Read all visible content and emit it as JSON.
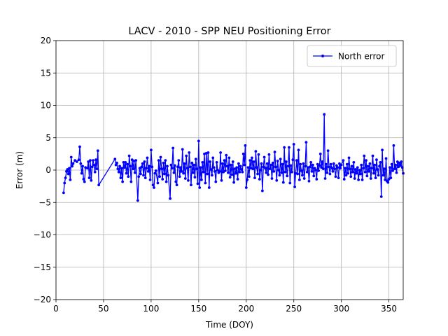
{
  "chart_data": {
    "type": "line",
    "title": "LACV - 2010 - SPP NEU Positioning Error",
    "x_label": "Time (DOY)",
    "y_label": "Error (m)",
    "xlim": [
      0,
      365
    ],
    "ylim": [
      -20,
      20
    ],
    "xticks": [
      0,
      50,
      100,
      150,
      200,
      250,
      300,
      350
    ],
    "yticks": [
      {
        "value": -20,
        "label": "−20"
      },
      {
        "value": -15,
        "label": "−15"
      },
      {
        "value": -10,
        "label": "−10"
      },
      {
        "value": -5,
        "label": "−5"
      },
      0,
      5,
      10,
      15,
      20
    ],
    "grid": true,
    "legend": "upper right",
    "x": [
      8,
      9,
      10,
      11,
      12,
      13,
      14,
      15,
      16,
      17,
      18,
      20,
      22,
      24,
      25,
      26,
      27,
      28,
      29,
      30,
      31,
      33,
      34,
      35,
      36,
      37,
      38,
      39,
      40,
      41,
      42,
      43,
      44,
      45,
      62,
      63,
      64,
      65,
      66,
      67,
      68,
      69,
      70,
      71,
      72,
      73,
      74,
      75,
      76,
      77,
      78,
      79,
      80,
      81,
      82,
      83,
      84,
      86,
      87,
      88,
      89,
      90,
      91,
      92,
      93,
      94,
      95,
      96,
      97,
      98,
      99,
      100,
      101,
      102,
      103,
      104,
      105,
      107,
      108,
      109,
      110,
      111,
      112,
      113,
      114,
      115,
      116,
      117,
      118,
      120,
      121,
      122,
      123,
      124,
      125,
      126,
      127,
      128,
      129,
      130,
      131,
      132,
      133,
      134,
      135,
      136,
      137,
      138,
      139,
      140,
      141,
      142,
      143,
      144,
      145,
      146,
      147,
      148,
      149,
      150,
      151,
      152,
      153,
      154,
      155,
      156,
      157,
      158,
      159,
      160,
      161,
      162,
      163,
      164,
      165,
      166,
      167,
      168,
      169,
      170,
      171,
      172,
      173,
      174,
      175,
      176,
      177,
      178,
      179,
      180,
      181,
      182,
      183,
      184,
      185,
      186,
      187,
      188,
      189,
      190,
      191,
      192,
      193,
      194,
      195,
      196,
      197,
      198,
      199,
      200,
      201,
      202,
      203,
      204,
      205,
      206,
      207,
      208,
      209,
      210,
      211,
      212,
      213,
      214,
      215,
      216,
      217,
      218,
      219,
      220,
      221,
      222,
      223,
      224,
      225,
      226,
      227,
      228,
      229,
      230,
      231,
      232,
      233,
      234,
      235,
      236,
      237,
      238,
      239,
      240,
      241,
      242,
      243,
      244,
      245,
      246,
      247,
      248,
      249,
      250,
      251,
      252,
      253,
      254,
      255,
      256,
      257,
      258,
      259,
      260,
      261,
      262,
      263,
      264,
      265,
      266,
      267,
      268,
      269,
      270,
      271,
      272,
      273,
      274,
      275,
      276,
      277,
      278,
      279,
      280,
      281,
      282,
      283,
      284,
      285,
      286,
      287,
      288,
      289,
      290,
      291,
      292,
      293,
      294,
      295,
      296,
      297,
      298,
      299,
      300,
      302,
      303,
      304,
      305,
      306,
      307,
      308,
      309,
      310,
      311,
      312,
      313,
      314,
      315,
      316,
      317,
      318,
      319,
      320,
      321,
      322,
      323,
      324,
      325,
      326,
      327,
      328,
      329,
      330,
      331,
      332,
      333,
      334,
      335,
      336,
      337,
      338,
      339,
      340,
      341,
      342,
      343,
      344,
      345,
      346,
      347,
      348,
      349,
      350,
      351,
      352,
      353,
      354,
      355,
      356,
      357,
      358,
      359,
      360,
      361,
      362,
      363,
      364,
      365
    ],
    "series": [
      {
        "name": "North error",
        "color": "#0000ff",
        "values": [
          -3.5,
          -2.0,
          -1.2,
          -0.2,
          0.1,
          -0.6,
          0.3,
          -1.5,
          2.0,
          0.6,
          1.0,
          1.5,
          1.3,
          1.6,
          3.6,
          1.0,
          -0.5,
          0.6,
          -1.4,
          -1.8,
          0.4,
          0.3,
          1.3,
          -1.2,
          1.5,
          -1.6,
          0.5,
          1.5,
          0.8,
          -0.3,
          1.6,
          0.2,
          3.0,
          -2.3,
          1.7,
          0.8,
          1.1,
          0.2,
          -0.3,
          0.6,
          -1.2,
          0.3,
          -1.8,
          1.2,
          0.4,
          1.2,
          -0.5,
          0.9,
          -1.0,
          2.2,
          0.6,
          -1.8,
          1.6,
          0.2,
          1.4,
          -0.4,
          1.5,
          -4.7,
          -1.0,
          0.3,
          -0.6,
          0.5,
          1.0,
          -0.8,
          1.3,
          -1.2,
          0.3,
          1.9,
          -0.2,
          0.6,
          -1.5,
          3.1,
          0.5,
          -2.3,
          -2.7,
          -0.5,
          -0.1,
          -2.0,
          1.5,
          -1.0,
          2.0,
          0.2,
          -1.4,
          1.1,
          -0.6,
          1.5,
          -1.8,
          0.6,
          -0.8,
          -4.4,
          0.8,
          0.3,
          3.4,
          -0.4,
          0.7,
          -1.8,
          -2.3,
          0.5,
          1.5,
          -1.0,
          0.4,
          -0.2,
          3.2,
          -0.5,
          1.0,
          -1.3,
          2.2,
          0.3,
          -1.6,
          2.7,
          0.5,
          -2.3,
          1.1,
          -0.4,
          0.8,
          -1.1,
          1.7,
          0.2,
          -2.1,
          4.5,
          -2.7,
          0.4,
          -1.5,
          1.2,
          -0.3,
          2.5,
          -2.0,
          2.6,
          -0.6,
          2.7,
          -2.7,
          1.3,
          0.1,
          -0.8,
          1.9,
          0.4,
          -0.2,
          -1.8,
          1.2,
          0.0,
          -0.4,
          -0.2,
          2.7,
          -1.6,
          1.0,
          -0.3,
          1.5,
          -0.1,
          2.3,
          0.6,
          -0.4,
          1.9,
          -1.1,
          0.8,
          -0.7,
          1.3,
          -1.9,
          0.2,
          -0.5,
          0.4,
          -1.4,
          1.0,
          -0.3,
          0.6,
          0.1,
          -0.3,
          2.5,
          0.8,
          3.8,
          -2.7,
          -1.5,
          0.4,
          -1.0,
          1.5,
          0.3,
          1.9,
          0.2,
          1.3,
          -1.2,
          2.9,
          0.4,
          -0.6,
          2.4,
          -1.4,
          0.0,
          1.0,
          -3.2,
          0.5,
          2.0,
          0.3,
          -0.4,
          1.0,
          -0.7,
          2.4,
          0.2,
          0.8,
          -1.3,
          1.1,
          -0.2,
          2.8,
          0.5,
          -1.6,
          1.4,
          0.0,
          -0.8,
          1.7,
          -0.4,
          0.9,
          -1.9,
          3.5,
          -0.3,
          1.3,
          -0.9,
          0.6,
          3.5,
          -2.0,
          0.7,
          -0.3,
          1.6,
          4.0,
          -2.6,
          -0.5,
          1.5,
          -0.6,
          3.1,
          -1.5,
          0.9,
          -0.1,
          -0.8,
          1.0,
          -1.3,
          0.6,
          4.3,
          -0.3,
          0.4,
          -1.7,
          0.5,
          1.2,
          -0.2,
          0.8,
          -0.9,
          0.3,
          0.0,
          -1.4,
          0.9,
          -0.1,
          0.7,
          2.5,
          0.4,
          1.3,
          0.2,
          8.6,
          -1.3,
          0.9,
          -0.4,
          3.0,
          0.5,
          -0.6,
          0.9,
          0.3,
          -0.2,
          1.0,
          0.2,
          -1.0,
          0.7,
          0.4,
          -1.2,
          1.0,
          0.3,
          0.8,
          1.5,
          -1.4,
          0.3,
          -0.8,
          0.9,
          -0.5,
          1.9,
          0.2,
          -1.0,
          0.6,
          -0.3,
          1.2,
          -1.3,
          0.1,
          -0.5,
          0.4,
          -1.5,
          0.0,
          -0.6,
          0.8,
          -1.5,
          0.3,
          2.2,
          -0.3,
          1.5,
          -0.9,
          0.6,
          -0.2,
          1.0,
          -1.3,
          0.3,
          2.2,
          -0.5,
          0.8,
          -1.2,
          1.6,
          0.1,
          -0.8,
          0.6,
          1.2,
          -4.1,
          3.1,
          -0.8,
          0.2,
          -1.5,
          1.8,
          -1.7,
          -1.9,
          -1.4,
          0.4,
          -1.2,
          0.9,
          -0.1,
          3.8,
          0.2,
          0.8,
          -0.4,
          1.3,
          0.5,
          1.1,
          0.7,
          1.3,
          0.4,
          -0.5
        ]
      }
    ]
  }
}
